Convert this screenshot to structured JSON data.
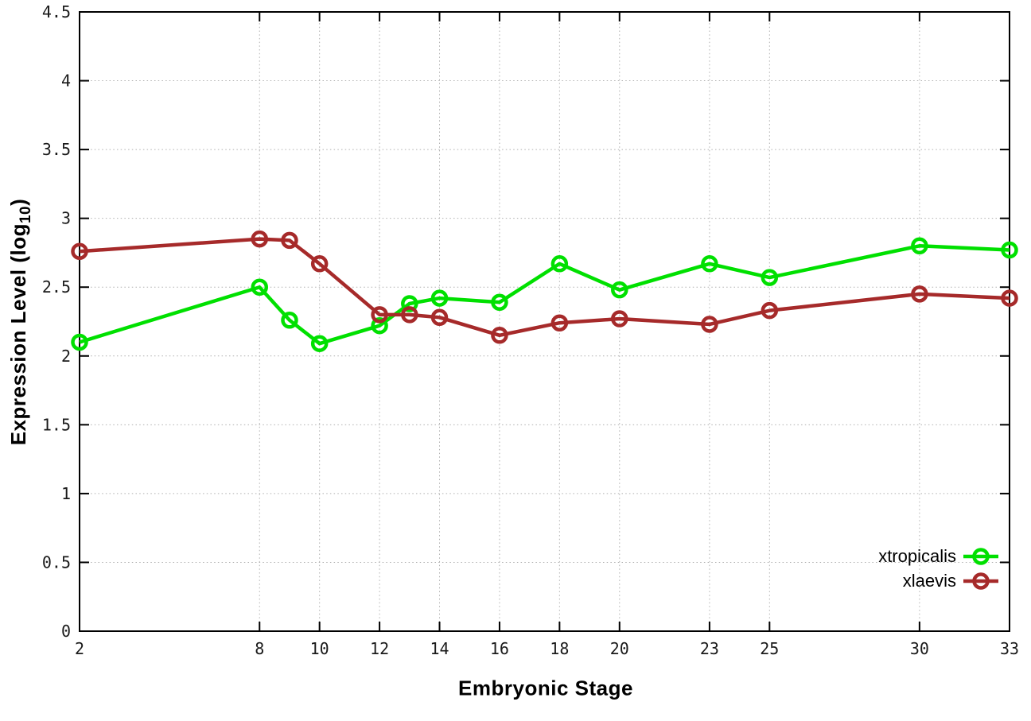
{
  "chart_data": {
    "type": "line",
    "title": "",
    "xlabel": "Embryonic Stage",
    "ylabel": "Expression Level (log10)",
    "ylabel_parts": {
      "prefix": "Expression Level (log",
      "sub": "10",
      "suffix": ")"
    },
    "xlim": [
      2,
      33
    ],
    "ylim": [
      0,
      4.5
    ],
    "xticks": [
      2,
      8,
      10,
      12,
      14,
      16,
      18,
      20,
      23,
      25,
      30,
      33
    ],
    "yticks": [
      0,
      0.5,
      1,
      1.5,
      2,
      2.5,
      3,
      3.5,
      4,
      4.5
    ],
    "grid": true,
    "legend_position": "bottom-right",
    "marker": "open-circle",
    "x": [
      2,
      8,
      9,
      10,
      12,
      13,
      14,
      16,
      18,
      20,
      23,
      25,
      30,
      33
    ],
    "series": [
      {
        "name": "xtropicalis",
        "color": "#00e000",
        "values": [
          2.1,
          2.5,
          2.26,
          2.09,
          2.22,
          2.38,
          2.42,
          2.39,
          2.67,
          2.48,
          2.67,
          2.57,
          2.8,
          2.77
        ]
      },
      {
        "name": "xlaevis",
        "color": "#a62a2a",
        "values": [
          2.76,
          2.85,
          2.84,
          2.67,
          2.3,
          2.3,
          2.28,
          2.15,
          2.24,
          2.27,
          2.23,
          2.33,
          2.45,
          2.42
        ]
      }
    ],
    "colors": {
      "grid": "#b0b0b0",
      "border": "#000000",
      "tick_text": "#1a1a1a"
    }
  }
}
